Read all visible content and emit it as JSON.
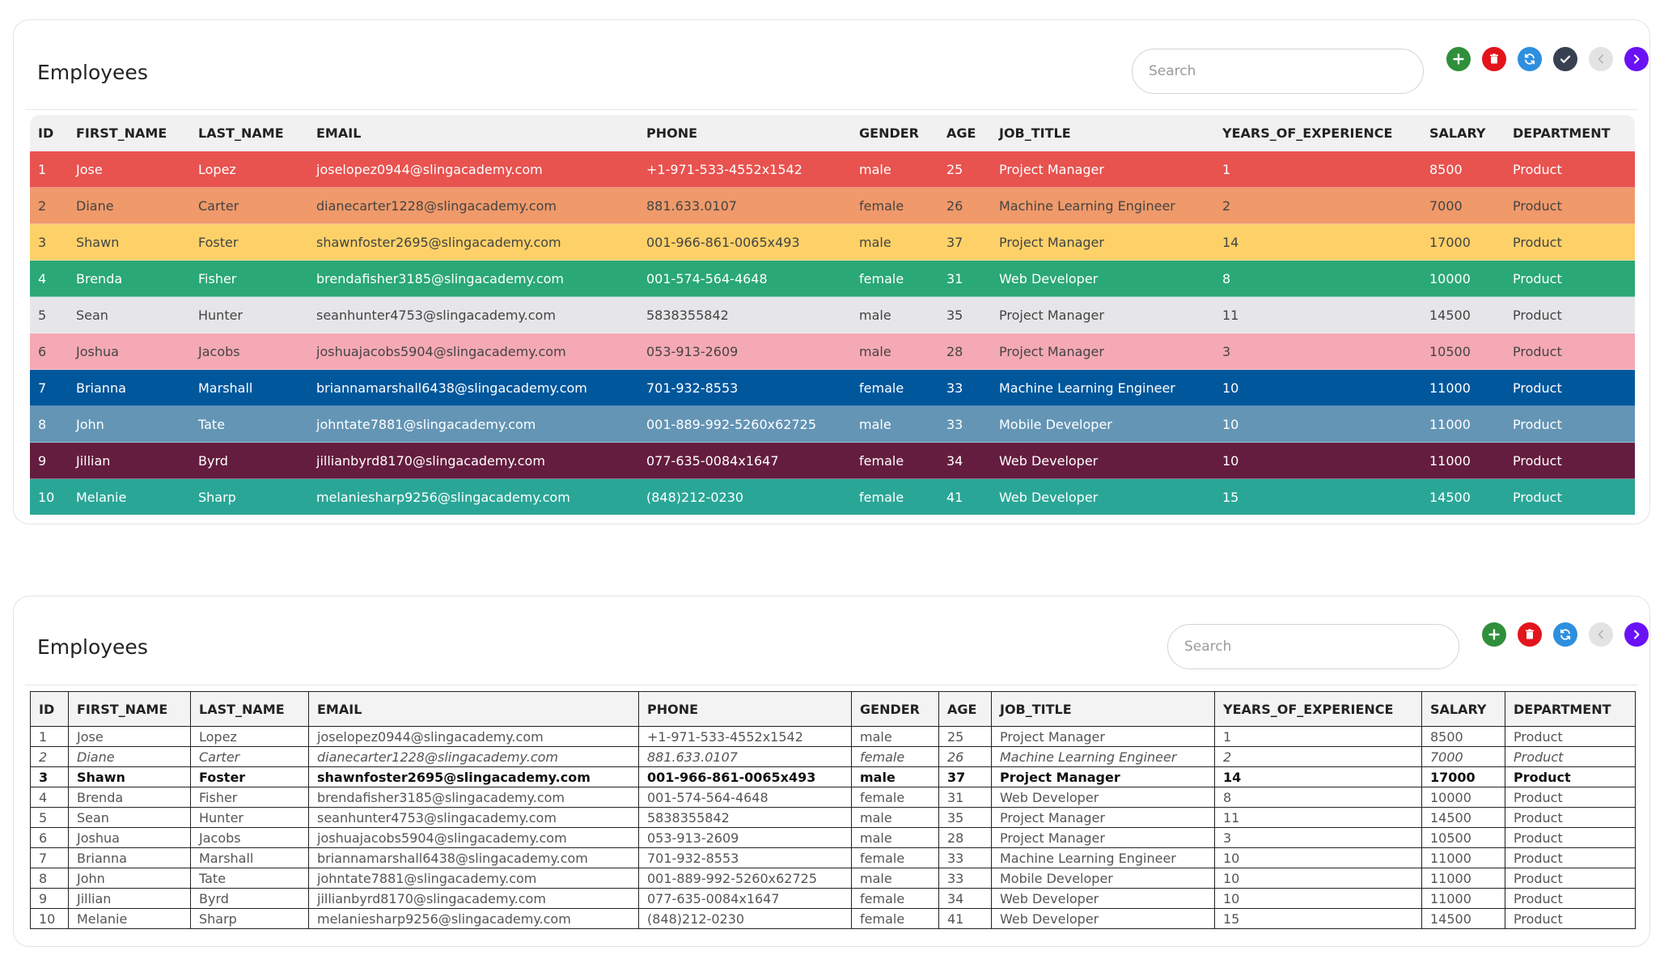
{
  "columns": [
    "ID",
    "FIRST_NAME",
    "LAST_NAME",
    "EMAIL",
    "PHONE",
    "GENDER",
    "AGE",
    "JOB_TITLE",
    "YEARS_OF_EXPERIENCE",
    "SALARY",
    "DEPARTMENT"
  ],
  "rows": [
    [
      "1",
      "Jose",
      "Lopez",
      "joselopez0944@slingacademy.com",
      "+1-971-533-4552x1542",
      "male",
      "25",
      "Project Manager",
      "1",
      "8500",
      "Product"
    ],
    [
      "2",
      "Diane",
      "Carter",
      "dianecarter1228@slingacademy.com",
      "881.633.0107",
      "female",
      "26",
      "Machine Learning Engineer",
      "2",
      "7000",
      "Product"
    ],
    [
      "3",
      "Shawn",
      "Foster",
      "shawnfoster2695@slingacademy.com",
      "001-966-861-0065x493",
      "male",
      "37",
      "Project Manager",
      "14",
      "17000",
      "Product"
    ],
    [
      "4",
      "Brenda",
      "Fisher",
      "brendafisher3185@slingacademy.com",
      "001-574-564-4648",
      "female",
      "31",
      "Web Developer",
      "8",
      "10000",
      "Product"
    ],
    [
      "5",
      "Sean",
      "Hunter",
      "seanhunter4753@slingacademy.com",
      "5838355842",
      "male",
      "35",
      "Project Manager",
      "11",
      "14500",
      "Product"
    ],
    [
      "6",
      "Joshua",
      "Jacobs",
      "joshuajacobs5904@slingacademy.com",
      "053-913-2609",
      "male",
      "28",
      "Project Manager",
      "3",
      "10500",
      "Product"
    ],
    [
      "7",
      "Brianna",
      "Marshall",
      "briannamarshall6438@slingacademy.com",
      "701-932-8553",
      "female",
      "33",
      "Machine Learning Engineer",
      "10",
      "11000",
      "Product"
    ],
    [
      "8",
      "John",
      "Tate",
      "johntate7881@slingacademy.com",
      "001-889-992-5260x62725",
      "male",
      "33",
      "Mobile Developer",
      "10",
      "11000",
      "Product"
    ],
    [
      "9",
      "Jillian",
      "Byrd",
      "jillianbyrd8170@slingacademy.com",
      "077-635-0084x1647",
      "female",
      "34",
      "Web Developer",
      "10",
      "11000",
      "Product"
    ],
    [
      "10",
      "Melanie",
      "Sharp",
      "melaniesharp9256@slingacademy.com",
      "(848)212-0230",
      "female",
      "41",
      "Web Developer",
      "15",
      "14500",
      "Product"
    ]
  ],
  "card1": {
    "title": "Employees",
    "search_placeholder": "Search",
    "toolbar": [
      "add-icon",
      "delete-icon",
      "refresh-icon",
      "check-icon",
      "prev-icon",
      "next-icon"
    ],
    "row_colors": [
      "#e8524f",
      "#f0996a",
      "#fdd168",
      "#2aa875",
      "#e6e6e9",
      "#f5a9b5",
      "#00579c",
      "#6495b5",
      "#641d3e",
      "#2aa697"
    ]
  },
  "card2": {
    "title": "Employees",
    "search_placeholder": "Search",
    "toolbar": [
      "add-icon",
      "delete-icon",
      "refresh-icon",
      "prev-icon",
      "next-icon"
    ],
    "row_styles": [
      "normal",
      "italic",
      "bold",
      "normal",
      "normal",
      "normal",
      "normal",
      "normal",
      "normal",
      "normal"
    ]
  },
  "colors": {
    "add": "#2f8f3a",
    "delete": "#e3141b",
    "refresh": "#2d8fde",
    "check": "#374151",
    "prev": "#e3e3e3",
    "next": "#6a12f5"
  }
}
